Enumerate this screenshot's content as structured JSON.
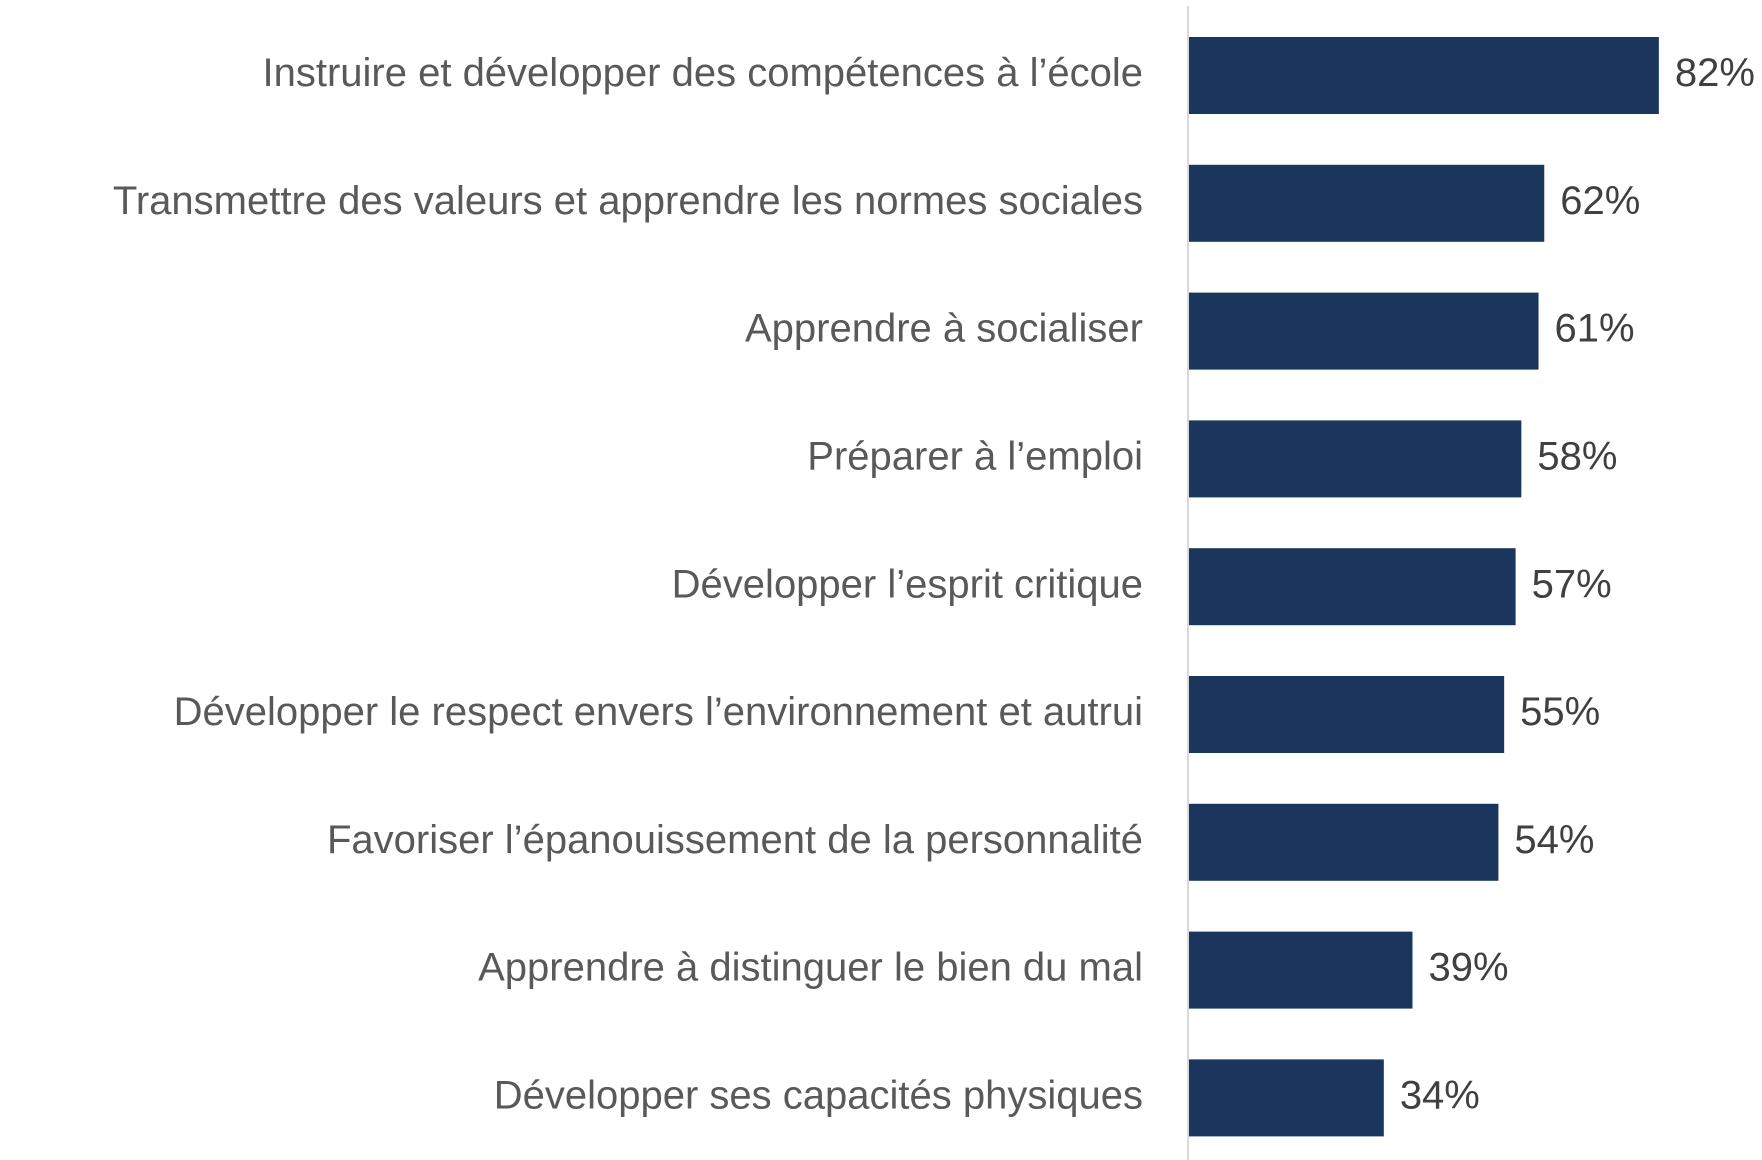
{
  "chart_data": {
    "type": "bar",
    "orientation": "horizontal",
    "categories": [
      "Instruire et développer des compétences à l’école",
      "Transmettre des valeurs et apprendre les normes sociales",
      "Apprendre à socialiser",
      "Préparer à l’emploi",
      "Développer l’esprit critique",
      "Développer le respect envers l’environnement et autrui",
      "Favoriser l’épanouissement de la personnalité",
      "Apprendre à distinguer le bien du mal",
      "Développer ses capacités physiques"
    ],
    "values": [
      82,
      62,
      61,
      58,
      57,
      55,
      54,
      39,
      34
    ],
    "value_labels": [
      "82%",
      "62%",
      "61%",
      "58%",
      "57%",
      "55%",
      "54%",
      "39%",
      "34%"
    ],
    "color": "#1b365d"
  }
}
